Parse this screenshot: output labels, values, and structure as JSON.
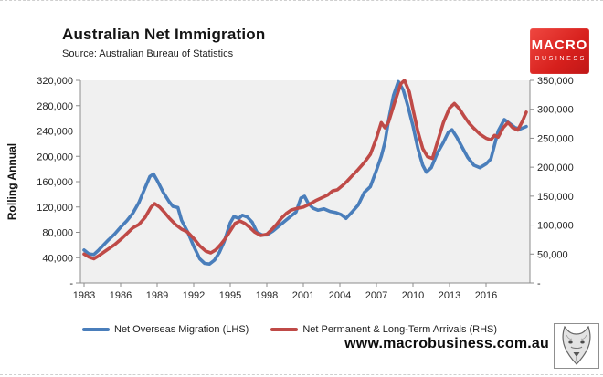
{
  "header": {
    "title": "Australian Net Immigration",
    "source": "Source: Australian Bureau of Statistics"
  },
  "brand": {
    "name_top": "MACRO",
    "name_bottom": "BUSINESS",
    "bg_color": "#d7201d"
  },
  "footer": {
    "website": "www.macrobusiness.com.au",
    "wolf_icon": "wolf-head-icon"
  },
  "chart_data": {
    "type": "line",
    "title": "Australian Net Immigration",
    "subtitle": "Source: Australian Bureau of Statistics",
    "ylabel": "Rolling Annual",
    "grid": false,
    "panel_color": "#f0f0f0",
    "axis_color": "#8c8c8c",
    "text_color": "#262626",
    "x_axis": {
      "tick_years": [
        1983,
        1986,
        1989,
        1992,
        1995,
        1998,
        2001,
        2004,
        2007,
        2010,
        2013,
        2016
      ],
      "tick_labels": [
        "1983",
        "1986",
        "1989",
        "1992",
        "1995",
        "1998",
        "2001",
        "2004",
        "2007",
        "2010",
        "2013",
        "2016"
      ],
      "min": 1982.7,
      "max": 2019.6
    },
    "left_axis": {
      "min": 0,
      "max": 320000,
      "step": 40000,
      "tick_labels": [
        "-",
        "40,000",
        "80,000",
        "120,000",
        "160,000",
        "200,000",
        "240,000",
        "280,000",
        "320,000"
      ]
    },
    "right_axis": {
      "min": 0,
      "max": 350000,
      "step": 50000,
      "tick_labels": [
        "-",
        "50,000",
        "100,000",
        "150,000",
        "200,000",
        "250,000",
        "300,000",
        "350,000"
      ]
    },
    "legend": {
      "position": "bottom"
    },
    "series": [
      {
        "name": "Net Overseas Migration (LHS)",
        "axis": "left",
        "color": "#4a7ebb",
        "points": [
          [
            1983.0,
            52000
          ],
          [
            1983.4,
            46000
          ],
          [
            1983.8,
            45000
          ],
          [
            1984.2,
            52000
          ],
          [
            1984.6,
            60000
          ],
          [
            1985.0,
            68000
          ],
          [
            1985.5,
            77000
          ],
          [
            1986.0,
            88000
          ],
          [
            1986.5,
            98000
          ],
          [
            1987.0,
            110000
          ],
          [
            1987.5,
            127000
          ],
          [
            1988.0,
            150000
          ],
          [
            1988.4,
            168000
          ],
          [
            1988.7,
            172000
          ],
          [
            1989.0,
            162000
          ],
          [
            1989.5,
            143000
          ],
          [
            1990.0,
            128000
          ],
          [
            1990.3,
            121000
          ],
          [
            1990.7,
            119000
          ],
          [
            1991.0,
            99000
          ],
          [
            1991.5,
            81000
          ],
          [
            1992.0,
            58000
          ],
          [
            1992.5,
            38000
          ],
          [
            1992.9,
            31000
          ],
          [
            1993.3,
            30000
          ],
          [
            1993.7,
            36000
          ],
          [
            1994.1,
            48000
          ],
          [
            1994.5,
            65000
          ],
          [
            1995.0,
            95000
          ],
          [
            1995.3,
            105000
          ],
          [
            1995.7,
            102000
          ],
          [
            1996.0,
            107000
          ],
          [
            1996.4,
            104000
          ],
          [
            1996.8,
            96000
          ],
          [
            1997.2,
            80000
          ],
          [
            1997.6,
            76000
          ],
          [
            1998.0,
            76000
          ],
          [
            1998.5,
            82000
          ],
          [
            1999.0,
            90000
          ],
          [
            1999.5,
            98000
          ],
          [
            2000.0,
            106000
          ],
          [
            2000.4,
            112000
          ],
          [
            2000.8,
            134000
          ],
          [
            2001.1,
            137000
          ],
          [
            2001.4,
            126000
          ],
          [
            2001.8,
            118000
          ],
          [
            2002.2,
            115000
          ],
          [
            2002.7,
            117000
          ],
          [
            2003.2,
            113000
          ],
          [
            2003.7,
            111000
          ],
          [
            2004.1,
            108000
          ],
          [
            2004.5,
            102000
          ],
          [
            2005.0,
            112000
          ],
          [
            2005.5,
            123000
          ],
          [
            2006.0,
            143000
          ],
          [
            2006.5,
            152000
          ],
          [
            2007.0,
            178000
          ],
          [
            2007.4,
            200000
          ],
          [
            2007.7,
            222000
          ],
          [
            2008.0,
            257000
          ],
          [
            2008.4,
            296000
          ],
          [
            2008.8,
            318000
          ],
          [
            2009.2,
            305000
          ],
          [
            2009.6,
            278000
          ],
          [
            2010.0,
            248000
          ],
          [
            2010.4,
            213000
          ],
          [
            2010.8,
            186000
          ],
          [
            2011.1,
            175000
          ],
          [
            2011.5,
            182000
          ],
          [
            2012.0,
            205000
          ],
          [
            2012.5,
            222000
          ],
          [
            2012.9,
            238000
          ],
          [
            2013.2,
            242000
          ],
          [
            2013.6,
            230000
          ],
          [
            2014.1,
            212000
          ],
          [
            2014.5,
            198000
          ],
          [
            2015.0,
            186000
          ],
          [
            2015.5,
            182000
          ],
          [
            2016.0,
            188000
          ],
          [
            2016.4,
            196000
          ],
          [
            2017.0,
            240000
          ],
          [
            2017.5,
            258000
          ],
          [
            2018.0,
            251000
          ],
          [
            2018.4,
            245000
          ],
          [
            2018.8,
            243000
          ],
          [
            2019.3,
            247000
          ]
        ]
      },
      {
        "name": "Net Permanent & Long-Term Arrivals (RHS)",
        "axis": "right",
        "color": "#bf4a47",
        "points": [
          [
            1983.0,
            50000
          ],
          [
            1983.4,
            45000
          ],
          [
            1983.8,
            42000
          ],
          [
            1984.2,
            47000
          ],
          [
            1984.6,
            53000
          ],
          [
            1985.0,
            59000
          ],
          [
            1985.5,
            66000
          ],
          [
            1986.0,
            75000
          ],
          [
            1986.5,
            85000
          ],
          [
            1987.0,
            95000
          ],
          [
            1987.5,
            101000
          ],
          [
            1988.0,
            113000
          ],
          [
            1988.5,
            131000
          ],
          [
            1988.8,
            137000
          ],
          [
            1989.2,
            131000
          ],
          [
            1989.6,
            122000
          ],
          [
            1990.0,
            112000
          ],
          [
            1990.5,
            101000
          ],
          [
            1991.0,
            93000
          ],
          [
            1991.5,
            88000
          ],
          [
            1992.0,
            77000
          ],
          [
            1992.5,
            64000
          ],
          [
            1993.0,
            55000
          ],
          [
            1993.4,
            52000
          ],
          [
            1993.8,
            57000
          ],
          [
            1994.2,
            66000
          ],
          [
            1994.6,
            77000
          ],
          [
            1995.0,
            90000
          ],
          [
            1995.4,
            103000
          ],
          [
            1995.8,
            107000
          ],
          [
            1996.2,
            103000
          ],
          [
            1996.6,
            96000
          ],
          [
            1997.0,
            88000
          ],
          [
            1997.5,
            82000
          ],
          [
            1998.0,
            84000
          ],
          [
            1998.4,
            92000
          ],
          [
            1998.8,
            101000
          ],
          [
            1999.2,
            112000
          ],
          [
            1999.6,
            120000
          ],
          [
            2000.0,
            126000
          ],
          [
            2000.5,
            129000
          ],
          [
            2001.0,
            131000
          ],
          [
            2001.5,
            136000
          ],
          [
            2002.0,
            142000
          ],
          [
            2002.5,
            147000
          ],
          [
            2003.0,
            152000
          ],
          [
            2003.4,
            159000
          ],
          [
            2003.8,
            161000
          ],
          [
            2004.2,
            168000
          ],
          [
            2004.6,
            176000
          ],
          [
            2005.0,
            185000
          ],
          [
            2005.5,
            196000
          ],
          [
            2006.0,
            208000
          ],
          [
            2006.5,
            222000
          ],
          [
            2007.0,
            250000
          ],
          [
            2007.4,
            277000
          ],
          [
            2007.7,
            268000
          ],
          [
            2008.0,
            278000
          ],
          [
            2008.5,
            312000
          ],
          [
            2009.0,
            344000
          ],
          [
            2009.3,
            350000
          ],
          [
            2009.7,
            330000
          ],
          [
            2010.0,
            300000
          ],
          [
            2010.4,
            262000
          ],
          [
            2010.8,
            232000
          ],
          [
            2011.2,
            218000
          ],
          [
            2011.6,
            215000
          ],
          [
            2012.0,
            243000
          ],
          [
            2012.5,
            277000
          ],
          [
            2013.0,
            302000
          ],
          [
            2013.4,
            310000
          ],
          [
            2013.8,
            301000
          ],
          [
            2014.2,
            288000
          ],
          [
            2014.6,
            276000
          ],
          [
            2015.0,
            267000
          ],
          [
            2015.5,
            257000
          ],
          [
            2016.0,
            250000
          ],
          [
            2016.4,
            247000
          ],
          [
            2016.7,
            255000
          ],
          [
            2017.0,
            252000
          ],
          [
            2017.4,
            268000
          ],
          [
            2017.8,
            277000
          ],
          [
            2018.2,
            268000
          ],
          [
            2018.6,
            264000
          ],
          [
            2019.0,
            280000
          ],
          [
            2019.3,
            295000
          ]
        ]
      }
    ]
  }
}
